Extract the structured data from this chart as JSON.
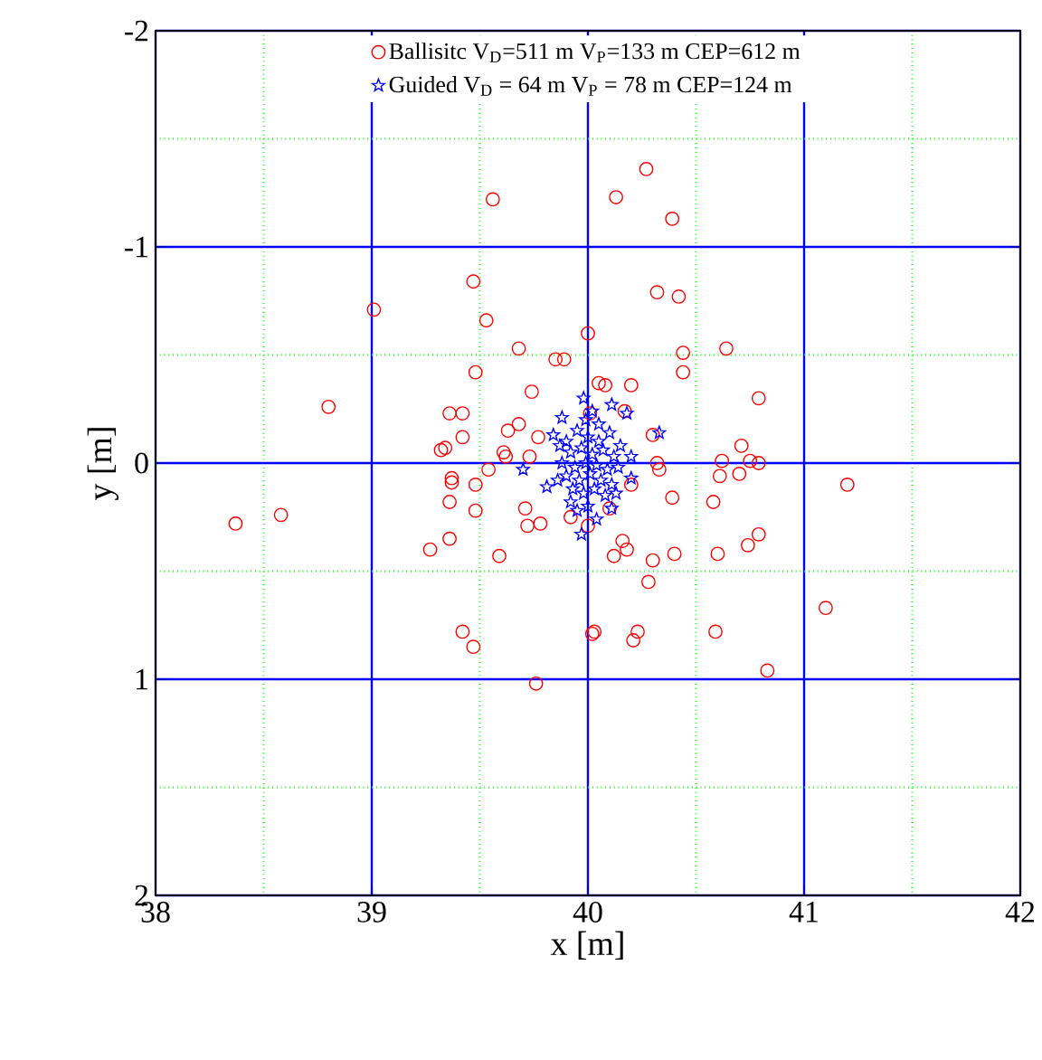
{
  "chart_data": {
    "type": "scatter",
    "xlabel": "x  [m]",
    "ylabel": "y [m]",
    "xlim": [
      38,
      42
    ],
    "ylim": [
      2,
      -2
    ],
    "xticks": [
      38,
      39,
      40,
      41,
      42
    ],
    "yticks": [
      -2,
      -1,
      0,
      1,
      2
    ],
    "grid": true,
    "legend": "top",
    "series": [
      {
        "name": "Ballisitc V$_{D}$=511 m V$_{P}$=133 m  CEP=612 m",
        "color": "#ff0000",
        "marker": "circle",
        "x": [
          39.56,
          39.47,
          39.01,
          39.53,
          40.0,
          39.68,
          39.85,
          39.89,
          39.48,
          39.74,
          38.8,
          39.36,
          39.42,
          39.68,
          39.63,
          39.42,
          39.77,
          39.34,
          39.32,
          39.61,
          39.62,
          39.73,
          40.05,
          40.27,
          40.13,
          40.39,
          40.32,
          40.42,
          40.44,
          40.64,
          40.44,
          40.08,
          40.2,
          40.79,
          40.17,
          40.01,
          40.3,
          40.71,
          40.62,
          40.75,
          40.79,
          40.32,
          38.37,
          38.58,
          39.37,
          39.37,
          39.48,
          39.54,
          39.36,
          39.48,
          39.71,
          39.78,
          39.72,
          39.92,
          39.36,
          39.27,
          39.59,
          39.42,
          39.47,
          39.76,
          40.02,
          40.33,
          40.61,
          40.7,
          40.2,
          40.39,
          40.58,
          41.2,
          40.1,
          40.0,
          40.16,
          40.18,
          40.12,
          40.3,
          40.4,
          40.6,
          40.74,
          40.79,
          40.28,
          41.1,
          40.03,
          40.23,
          40.21,
          40.59,
          40.83
        ],
        "values": [
          -1.22,
          -0.84,
          -0.71,
          -0.66,
          -0.6,
          -0.53,
          -0.48,
          -0.48,
          -0.42,
          -0.33,
          -0.26,
          -0.23,
          -0.23,
          -0.18,
          -0.15,
          -0.12,
          -0.12,
          -0.07,
          -0.06,
          -0.05,
          -0.03,
          -0.03,
          -0.37,
          -1.36,
          -1.23,
          -1.13,
          -0.79,
          -0.77,
          -0.51,
          -0.53,
          -0.42,
          -0.36,
          -0.36,
          -0.3,
          -0.24,
          -0.23,
          -0.13,
          -0.08,
          -0.01,
          -0.01,
          0.0,
          0.0,
          0.28,
          0.24,
          0.07,
          0.09,
          0.1,
          0.03,
          0.18,
          0.22,
          0.21,
          0.28,
          0.29,
          0.25,
          0.35,
          0.4,
          0.43,
          0.78,
          0.85,
          1.02,
          0.79,
          0.03,
          0.06,
          0.05,
          0.1,
          0.16,
          0.18,
          0.1,
          0.21,
          0.29,
          0.36,
          0.4,
          0.43,
          0.45,
          0.42,
          0.42,
          0.38,
          0.33,
          0.55,
          0.67,
          0.78,
          0.78,
          0.82,
          0.78,
          0.96
        ]
      },
      {
        "name": "Guided   V$_{D}$ = 64 m  V$_{P}$ = 78 m  CEP=124 m",
        "color": "#0000ff",
        "marker": "star",
        "x": [
          39.98,
          40.33,
          39.7,
          39.97,
          40.04,
          40.11,
          40.18,
          39.84,
          39.81,
          40.2,
          40.2,
          40.11,
          39.92,
          39.88,
          40.02,
          39.9,
          39.95,
          40.0,
          40.05,
          40.1,
          39.92,
          39.97,
          40.02,
          40.07,
          40.12,
          39.88,
          39.94,
          39.99,
          40.04,
          40.09,
          40.14,
          39.9,
          39.96,
          40.01,
          40.06,
          40.11,
          39.93,
          39.98,
          40.03,
          40.08,
          40.0,
          39.95,
          40.05,
          39.86,
          40.15,
          39.99,
          40.13,
          39.87
        ],
        "values": [
          -0.3,
          -0.14,
          0.03,
          0.33,
          0.26,
          -0.27,
          -0.23,
          -0.13,
          0.11,
          -0.03,
          0.07,
          0.21,
          0.18,
          -0.21,
          -0.24,
          -0.1,
          -0.15,
          -0.12,
          -0.1,
          -0.14,
          -0.05,
          -0.07,
          -0.04,
          -0.06,
          -0.03,
          0.0,
          0.02,
          0.0,
          0.01,
          0.03,
          0.02,
          0.06,
          0.08,
          0.05,
          0.08,
          0.1,
          0.12,
          0.14,
          0.12,
          0.15,
          0.2,
          0.22,
          -0.18,
          0.08,
          -0.08,
          -0.2,
          0.14,
          -0.08
        ]
      }
    ]
  }
}
